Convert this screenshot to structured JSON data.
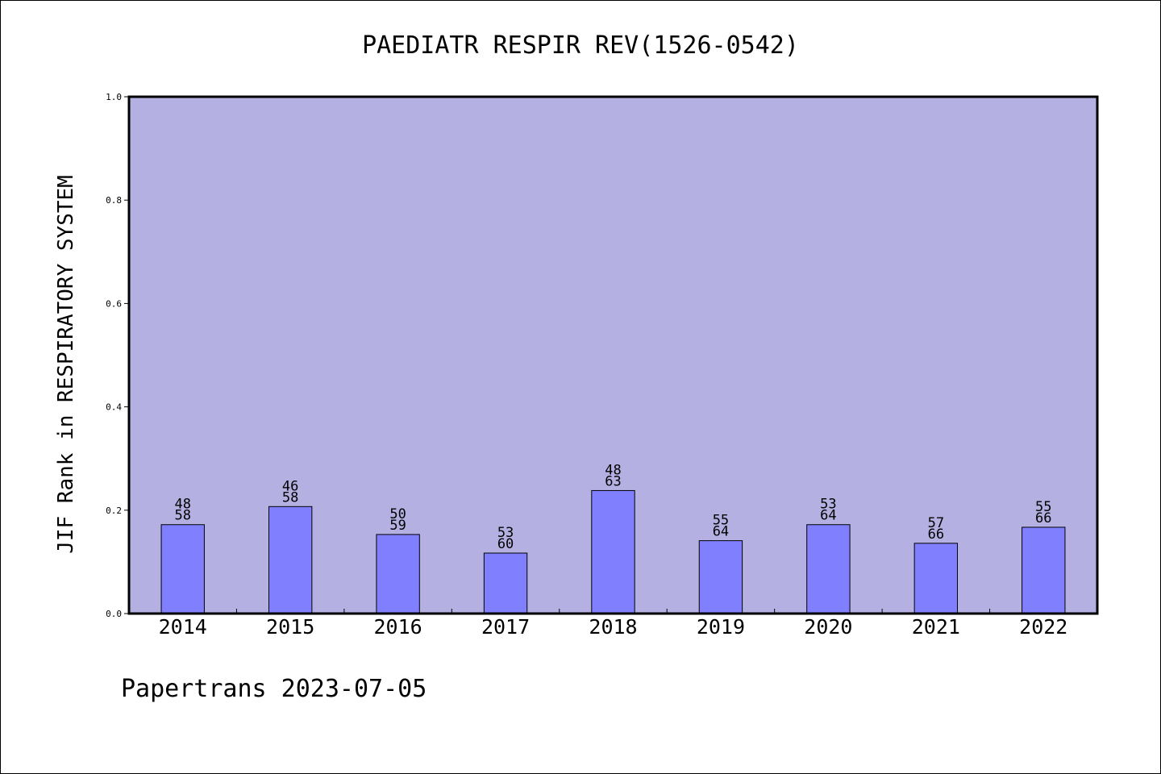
{
  "chart_data": {
    "type": "bar",
    "title": "PAEDIATR RESPIR REV(1526-0542)",
    "xlabel": "",
    "ylabel": "JIF Rank in RESPIRATORY SYSTEM",
    "ylim": [
      0.0,
      1.0
    ],
    "yticks": [
      "0.0",
      "0.2",
      "0.4",
      "0.6",
      "0.8",
      "1.0"
    ],
    "grid": false,
    "categories": [
      "2014",
      "2015",
      "2016",
      "2017",
      "2018",
      "2019",
      "2020",
      "2021",
      "2022"
    ],
    "series": [
      {
        "values": [
          0.172,
          0.207,
          0.153,
          0.117,
          0.238,
          0.141,
          0.172,
          0.136,
          0.167
        ],
        "rank": [
          "48",
          "46",
          "50",
          "53",
          "48",
          "55",
          "53",
          "57",
          "55"
        ],
        "total": [
          "58",
          "58",
          "59",
          "60",
          "63",
          "64",
          "64",
          "66",
          "66"
        ]
      }
    ],
    "colors": {
      "plot_background": "#B5B0E2",
      "bar_fill": "#8080FF",
      "bar_stroke": "#000000"
    }
  },
  "footer": {
    "text": "Papertrans 2023-07-05"
  }
}
